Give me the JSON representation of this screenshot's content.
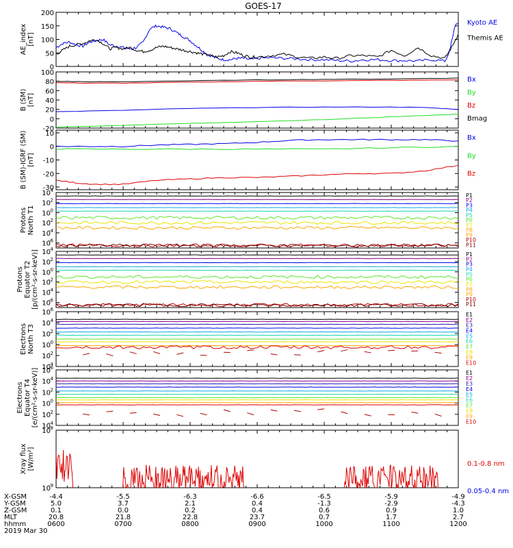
{
  "title": "GOES-17",
  "colors": {
    "black": "#000000",
    "blue": "#0000e6",
    "green": "#22dd22",
    "red": "#dd0000",
    "navy": "#2a1ab0",
    "cyan": "#12a8e6",
    "teal": "#19d6b0",
    "lime": "#5ae62a",
    "yellow": "#e6e600",
    "orange": "#ffa500",
    "brick": "#b00000",
    "maroon": "#800000",
    "violet": "#8b008b"
  },
  "chart_data": [
    {
      "id": "ae",
      "type": "line",
      "ylabel_lines": [
        "AE_index",
        "[nT]"
      ],
      "ylim": [
        0,
        200
      ],
      "yticks": [
        {
          "v": 0,
          "t": "0"
        },
        {
          "v": 50,
          "t": "50"
        },
        {
          "v": 100,
          "t": "100"
        },
        {
          "v": 150,
          "t": "150"
        },
        {
          "v": 200,
          "t": "200"
        }
      ],
      "series": [
        {
          "name": "Kyoto AE",
          "color": "blue",
          "x": [
            6,
            6.1,
            6.2,
            6.3,
            6.4,
            6.5,
            6.6,
            6.7,
            6.8,
            6.9,
            7.0,
            7.1,
            7.2,
            7.3,
            7.4,
            7.5,
            7.6,
            7.7,
            7.8,
            7.9,
            8.0,
            8.1,
            8.2,
            8.3,
            8.4,
            8.5,
            8.6,
            8.7,
            8.8,
            8.9,
            9.0,
            9.2,
            9.4,
            9.6,
            9.8,
            10.0,
            10.2,
            10.4,
            10.6,
            10.8,
            11.0,
            11.2,
            11.4,
            11.6,
            11.8,
            11.85,
            11.9,
            11.95,
            12.0
          ],
          "y": [
            70,
            85,
            90,
            80,
            75,
            90,
            95,
            100,
            80,
            75,
            70,
            65,
            70,
            90,
            140,
            150,
            145,
            140,
            125,
            110,
            95,
            75,
            55,
            40,
            30,
            25,
            25,
            30,
            30,
            25,
            30,
            32,
            30,
            28,
            25,
            25,
            22,
            20,
            25,
            25,
            22,
            22,
            20,
            25,
            20,
            40,
            90,
            150,
            160
          ]
        },
        {
          "name": "Themis AE",
          "color": "black",
          "x": [
            6,
            6.1,
            6.2,
            6.3,
            6.4,
            6.5,
            6.6,
            6.7,
            6.8,
            6.9,
            7.0,
            7.1,
            7.2,
            7.3,
            7.4,
            7.5,
            7.6,
            7.7,
            7.8,
            7.9,
            8.0,
            8.1,
            8.2,
            8.3,
            8.4,
            8.5,
            8.6,
            8.7,
            8.8,
            8.9,
            9.0,
            9.2,
            9.4,
            9.6,
            9.8,
            10.0,
            10.2,
            10.4,
            10.6,
            10.8,
            11.0,
            11.2,
            11.4,
            11.6,
            11.8,
            11.9,
            12.0
          ],
          "y": [
            45,
            60,
            75,
            80,
            85,
            95,
            100,
            85,
            65,
            70,
            65,
            70,
            60,
            55,
            60,
            70,
            75,
            70,
            65,
            60,
            55,
            50,
            45,
            40,
            35,
            40,
            55,
            50,
            40,
            35,
            35,
            40,
            45,
            35,
            30,
            35,
            30,
            40,
            40,
            35,
            60,
            40,
            70,
            40,
            30,
            70,
            120
          ]
        }
      ]
    },
    {
      "id": "bsm",
      "type": "line",
      "ylabel_lines": [
        "B (SM)",
        "[nT]"
      ],
      "ylim": [
        -20,
        100
      ],
      "yticks": [
        {
          "v": -20,
          "t": "-20"
        },
        {
          "v": 0,
          "t": "0"
        },
        {
          "v": 20,
          "t": "20"
        },
        {
          "v": 40,
          "t": "40"
        },
        {
          "v": 60,
          "t": "60"
        },
        {
          "v": 80,
          "t": "80"
        },
        {
          "v": 100,
          "t": "100"
        }
      ],
      "series": [
        {
          "name": "Bx",
          "color": "blue",
          "x": [
            6,
            7,
            8,
            9,
            10,
            11,
            11.5,
            12
          ],
          "y": [
            15,
            18,
            22,
            24,
            25,
            25,
            24,
            20
          ]
        },
        {
          "name": "By",
          "color": "green",
          "x": [
            6,
            7,
            8,
            9,
            10,
            11,
            12
          ],
          "y": [
            -18,
            -14,
            -10,
            -6,
            -2,
            4,
            10
          ]
        },
        {
          "name": "Bz",
          "color": "red",
          "x": [
            6,
            6.5,
            7,
            8,
            9,
            10,
            11,
            12
          ],
          "y": [
            77,
            76,
            76,
            78,
            80,
            81,
            82,
            83
          ]
        },
        {
          "name": "Bmag",
          "color": "black",
          "x": [
            6,
            6.5,
            7,
            8,
            9,
            10,
            11,
            12
          ],
          "y": [
            80,
            79,
            79,
            81,
            83,
            84,
            85,
            87
          ]
        }
      ]
    },
    {
      "id": "bigrf",
      "type": "line",
      "ylabel_lines": [
        "B (SM)-IGRF (SM)",
        "[nT]"
      ],
      "ylim": [
        -32,
        12
      ],
      "yticks": [
        {
          "v": -30,
          "t": "-30"
        },
        {
          "v": -20,
          "t": "-20"
        },
        {
          "v": -10,
          "t": "-10"
        },
        {
          "v": 0,
          "t": "0"
        },
        {
          "v": 10,
          "t": "10"
        }
      ],
      "series": [
        {
          "name": "Bx",
          "color": "blue",
          "x": [
            6,
            6.5,
            7,
            7.5,
            8,
            8.5,
            9,
            9.5,
            10,
            10.5,
            11,
            11.5,
            12
          ],
          "y": [
            0,
            0,
            0,
            1,
            1.5,
            2,
            3,
            4.5,
            5,
            5,
            5,
            5,
            4
          ]
        },
        {
          "name": "By",
          "color": "green",
          "x": [
            6,
            7,
            8,
            9,
            10,
            11,
            12
          ],
          "y": [
            -2,
            -2,
            -2,
            -2,
            -2,
            -1,
            0
          ]
        },
        {
          "name": "Bz",
          "color": "red",
          "x": [
            6,
            6.3,
            6.6,
            7,
            7.5,
            8,
            8.5,
            9,
            9.5,
            10,
            10.5,
            11,
            11.5,
            12
          ],
          "y": [
            -25,
            -27,
            -28,
            -28,
            -25,
            -24,
            -23,
            -23,
            -22,
            -21,
            -20,
            -20,
            -18,
            -14
          ]
        }
      ]
    },
    {
      "id": "p_north",
      "type": "line",
      "log": true,
      "ylabel_lines": [
        "Protons",
        "North T1"
      ],
      "ylim_exp": [
        -7,
        4
      ],
      "yticks_exp": [
        -6,
        -4,
        -2,
        0,
        2,
        4
      ],
      "series": [
        {
          "name": "P1",
          "color": "black",
          "level": 3.3
        },
        {
          "name": "P2",
          "color": "violet",
          "level": 2.6
        },
        {
          "name": "P3",
          "color": "blue",
          "level": 1.8
        },
        {
          "name": "P4",
          "color": "cyan",
          "level": 1.0
        },
        {
          "name": "P5",
          "color": "teal",
          "level": 0.3
        },
        {
          "name": "P6",
          "color": "lime",
          "level": -1.0
        },
        {
          "name": "P7",
          "color": "yellow",
          "level": -2.0
        },
        {
          "name": "P8",
          "color": "orange",
          "level": -3.0
        },
        {
          "name": "P9",
          "color": "orange",
          "level": -3.0
        },
        {
          "name": "P10",
          "color": "brick",
          "level": -6.5
        },
        {
          "name": "P11",
          "color": "maroon",
          "level": -6.5
        }
      ]
    },
    {
      "id": "p_equator",
      "type": "line",
      "log": true,
      "ylabel_lines": [
        "Protons",
        "Equator T2",
        "[p/(cm²-s-sr-keV)]"
      ],
      "ylim_exp": [
        -7,
        4
      ],
      "yticks_exp": [
        -6,
        -4,
        -2,
        0,
        2,
        4
      ],
      "series": [
        {
          "name": "P1",
          "color": "black",
          "level": 3.3
        },
        {
          "name": "P2",
          "color": "violet",
          "level": 2.6
        },
        {
          "name": "P3",
          "color": "blue",
          "level": 1.8
        },
        {
          "name": "P4",
          "color": "cyan",
          "level": 1.0
        },
        {
          "name": "P5",
          "color": "teal",
          "level": 0.3
        },
        {
          "name": "P6",
          "color": "lime",
          "level": -1.0
        },
        {
          "name": "P7",
          "color": "yellow",
          "level": -2.0
        },
        {
          "name": "P8",
          "color": "orange",
          "level": -3.0
        },
        {
          "name": "P9",
          "color": "orange",
          "level": -3.0
        },
        {
          "name": "P10",
          "color": "brick",
          "level": -6.5
        },
        {
          "name": "P11",
          "color": "maroon",
          "level": -6.5
        }
      ]
    },
    {
      "id": "e_north",
      "type": "line",
      "log": true,
      "ylabel_lines": [
        "Electrons",
        "North T3"
      ],
      "ylim_exp": [
        -4,
        6
      ],
      "yticks_exp": [
        -4,
        -2,
        0,
        2,
        4,
        6
      ],
      "series": [
        {
          "name": "E1",
          "color": "black",
          "level": 4.6
        },
        {
          "name": "E2",
          "color": "violet",
          "level": 4.2
        },
        {
          "name": "E3",
          "color": "navy",
          "level": 3.7
        },
        {
          "name": "E4",
          "color": "blue",
          "level": 3.0
        },
        {
          "name": "E5",
          "color": "cyan",
          "level": 2.3
        },
        {
          "name": "E6",
          "color": "teal",
          "level": 1.7
        },
        {
          "name": "E7",
          "color": "lime",
          "level": 1.0
        },
        {
          "name": "E8",
          "color": "yellow",
          "level": 0.5
        },
        {
          "name": "E9",
          "color": "orange",
          "level": -0.2
        },
        {
          "name": "E10",
          "color": "red",
          "level": -0.5
        }
      ]
    },
    {
      "id": "e_equator",
      "type": "line",
      "log": true,
      "ylabel_lines": [
        "Electrons",
        "Equator T4",
        "[e/(cm²-s-sr-keV)]"
      ],
      "ylim_exp": [
        -4,
        6
      ],
      "yticks_exp": [
        -4,
        -2,
        0,
        2,
        4,
        6
      ],
      "series": [
        {
          "name": "E1",
          "color": "black",
          "level": 4.5
        },
        {
          "name": "E2",
          "color": "violet",
          "level": 4.0
        },
        {
          "name": "E3",
          "color": "navy",
          "level": 3.5
        },
        {
          "name": "E4",
          "color": "blue",
          "level": 2.9
        },
        {
          "name": "E5",
          "color": "cyan",
          "level": 2.2
        },
        {
          "name": "E6",
          "color": "teal",
          "level": 1.6
        },
        {
          "name": "E7",
          "color": "lime",
          "level": 1.0
        },
        {
          "name": "E8",
          "color": "yellow",
          "level": 0.6
        },
        {
          "name": "E9",
          "color": "orange",
          "level": 0.1
        },
        {
          "name": "E10",
          "color": "red",
          "level": -0.3
        }
      ]
    },
    {
      "id": "xray",
      "type": "line",
      "log": true,
      "ylabel_lines": [
        "Xray flux",
        "[W/m²]"
      ],
      "ylim_exp": [
        -9,
        -8
      ],
      "yticks_exp": [
        -9,
        -8
      ],
      "series": [
        {
          "name": "0.1-0.8 nm",
          "color": "red"
        },
        {
          "name": "0.05-0.4 nm",
          "color": "blue"
        }
      ]
    }
  ],
  "position_table": {
    "labels": [
      "X-GSM",
      "Y-GSM",
      "Z-GSM",
      "MLT",
      "hhmm"
    ],
    "date": "2019 Mar 30",
    "columns": [
      {
        "x": 6,
        "values": [
          "-4.4",
          "5.0",
          "0.1",
          "20.8",
          "0600"
        ]
      },
      {
        "x": 7,
        "values": [
          "-5.5",
          "3.7",
          "0.0",
          "21.8",
          "0700"
        ]
      },
      {
        "x": 8,
        "values": [
          "-6.3",
          "2.1",
          "0.2",
          "22.8",
          "0800"
        ]
      },
      {
        "x": 9,
        "values": [
          "-6.6",
          "0.4",
          "0.4",
          "23.7",
          "0900"
        ]
      },
      {
        "x": 10,
        "values": [
          "-6.5",
          "-1.3",
          "0.6",
          "0.7",
          "1000"
        ]
      },
      {
        "x": 11,
        "values": [
          "-5.9",
          "-2.9",
          "0.9",
          "1.7",
          "1100"
        ]
      },
      {
        "x": 12,
        "values": [
          "-4.9",
          "-4.3",
          "1.0",
          "2.7",
          "1200"
        ]
      }
    ]
  }
}
